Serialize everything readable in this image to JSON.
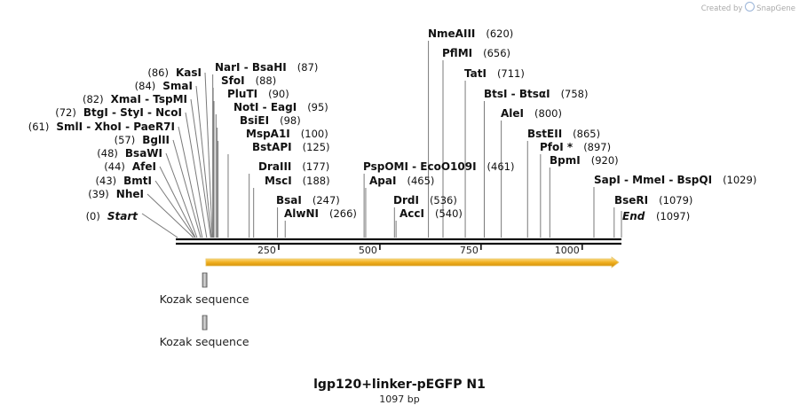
{
  "credit": {
    "prefix": "Created by",
    "brand": "SnapGene"
  },
  "title": "lgp120+linker-pEGFP N1",
  "length_label": "1097 bp",
  "sequence": {
    "start": 0,
    "end": 1097
  },
  "ticks": [
    250,
    500,
    750,
    1000
  ],
  "terminals": [
    {
      "label": "Start",
      "pos": 0
    },
    {
      "label": "End",
      "pos": 1097
    }
  ],
  "sites": [
    {
      "name": "NheI",
      "pos": 39
    },
    {
      "name": "BmtI",
      "pos": 43
    },
    {
      "name": "AfeI",
      "pos": 44
    },
    {
      "name": "BsaWI",
      "pos": 48
    },
    {
      "name": "BglII",
      "pos": 57
    },
    {
      "name": "SmlI  - XhoI  - PaeR7I",
      "pos": 61
    },
    {
      "name": "BtgI  - StyI  - NcoI",
      "pos": 72
    },
    {
      "name": "XmaI  - TspMI",
      "pos": 82
    },
    {
      "name": "SmaI",
      "pos": 84
    },
    {
      "name": "KasI",
      "pos": 86
    },
    {
      "name": "NarI  - BsaHI",
      "pos": 87
    },
    {
      "name": "SfoI",
      "pos": 88
    },
    {
      "name": "PluTI",
      "pos": 90
    },
    {
      "name": "NotI  - EagI",
      "pos": 95
    },
    {
      "name": "BsiEI",
      "pos": 98
    },
    {
      "name": "MspA1I",
      "pos": 100
    },
    {
      "name": "BstAPI",
      "pos": 125
    },
    {
      "name": "DraIII",
      "pos": 177
    },
    {
      "name": "MscI",
      "pos": 188
    },
    {
      "name": "BsaI",
      "pos": 247
    },
    {
      "name": "AlwNI",
      "pos": 266
    },
    {
      "name": "PspOMI  - EcoO109I",
      "pos": 461
    },
    {
      "name": "ApaI",
      "pos": 465
    },
    {
      "name": "DrdI",
      "pos": 536
    },
    {
      "name": "AccI",
      "pos": 540
    },
    {
      "name": "NmeAIII",
      "pos": 620
    },
    {
      "name": "PflMI",
      "pos": 656
    },
    {
      "name": "TatI",
      "pos": 711
    },
    {
      "name": "BtsI  - BtsαI",
      "pos": 758
    },
    {
      "name": "AleI",
      "pos": 800
    },
    {
      "name": "BstEII",
      "pos": 865
    },
    {
      "name": "PfoI *",
      "pos": 897
    },
    {
      "name": "BpmI",
      "pos": 920
    },
    {
      "name": "SapI  - MmeI  - BspQI",
      "pos": 1029
    },
    {
      "name": "BseRI",
      "pos": 1079
    }
  ],
  "features": {
    "orf": {
      "start": 70,
      "end": 1097,
      "color": "#f0a800"
    },
    "boxes": [
      {
        "label": "Kozak sequence",
        "start": 66,
        "end": 78
      },
      {
        "label": "Kozak sequence",
        "start": 66,
        "end": 78
      }
    ]
  }
}
